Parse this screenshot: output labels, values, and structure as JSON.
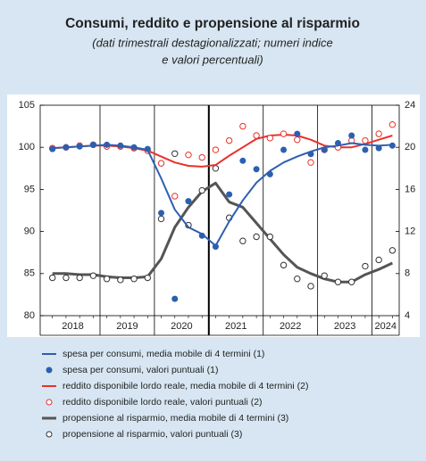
{
  "chart_data": {
    "type": "line",
    "title": "Consumi, reddito e propensione al risparmio",
    "subtitle": [
      "(dati trimestrali destagionalizzati; numeri indice",
      "e valori percentuali)"
    ],
    "x": [
      2018.125,
      2018.375,
      2018.625,
      2018.875,
      2019.125,
      2019.375,
      2019.625,
      2019.875,
      2020.125,
      2020.375,
      2020.625,
      2020.875,
      2021.125,
      2021.375,
      2021.625,
      2021.875,
      2022.125,
      2022.375,
      2022.625,
      2022.875,
      2023.125,
      2023.375,
      2023.625,
      2023.875,
      2024.125,
      2024.375
    ],
    "xlim": [
      2017.9,
      2024.5
    ],
    "xticks": [
      {
        "value": 2018.5,
        "label": "2018"
      },
      {
        "value": 2019.5,
        "label": "2019"
      },
      {
        "value": 2020.5,
        "label": "2020"
      },
      {
        "value": 2021.5,
        "label": "2021"
      },
      {
        "value": 2022.5,
        "label": "2022"
      },
      {
        "value": 2023.5,
        "label": "2023"
      },
      {
        "value": 2024.25,
        "label": "2024"
      }
    ],
    "year_lines": [
      2019,
      2020,
      2021,
      2022,
      2023,
      2024
    ],
    "thick_line": 2021,
    "ylim": [
      80,
      105
    ],
    "yticks": [
      80,
      85,
      90,
      95,
      100,
      105
    ],
    "y2lim": [
      4,
      24
    ],
    "y2ticks": [
      4,
      8,
      12,
      16,
      20,
      24
    ],
    "series": [
      {
        "name": "spesa per consumi, media mobile di 4 termini (1)",
        "color": "#2d5fb0",
        "kind": "line",
        "values": [
          99.9,
          100.0,
          100.1,
          100.2,
          100.3,
          100.2,
          100.0,
          99.7,
          96.3,
          92.6,
          90.5,
          89.7,
          88.3,
          91.2,
          93.7,
          95.8,
          97.2,
          98.2,
          98.9,
          99.5,
          100.0,
          100.2,
          100.5,
          100.3,
          100.2,
          100.3
        ]
      },
      {
        "name": "spesa per consumi, valori puntuali (1)",
        "color": "#2d5fb0",
        "kind": "dots",
        "values": [
          99.8,
          100.0,
          100.1,
          100.3,
          100.3,
          100.2,
          100.0,
          99.8,
          92.2,
          82.0,
          93.6,
          89.5,
          88.2,
          94.4,
          98.4,
          97.4,
          96.8,
          99.7,
          101.6,
          99.2,
          99.7,
          100.5,
          101.4,
          99.7,
          99.9,
          100.2
        ]
      },
      {
        "name": "reddito disponibile lordo reale, media mobile di 4 termini (2)",
        "color": "#e8322a",
        "kind": "line",
        "values": [
          99.9,
          100.0,
          100.1,
          100.2,
          100.2,
          100.1,
          99.9,
          99.6,
          98.9,
          98.2,
          97.8,
          97.7,
          97.9,
          99.0,
          100.0,
          101.0,
          101.4,
          101.5,
          101.4,
          100.9,
          100.2,
          100.0,
          100.0,
          100.4,
          100.9,
          101.4
        ]
      },
      {
        "name": "reddito disponibile lordo reale, valori puntuali (2)",
        "color": "#e8322a",
        "kind": "circles",
        "values": [
          99.9,
          100.0,
          100.2,
          100.3,
          100.1,
          100.1,
          99.9,
          99.6,
          98.1,
          94.2,
          99.1,
          98.8,
          99.7,
          100.8,
          102.5,
          101.4,
          101.1,
          101.6,
          100.9,
          98.2,
          99.7,
          100.0,
          100.8,
          100.8,
          101.6,
          102.7
        ]
      },
      {
        "name": "propensione al risparmio, media mobile di 4 termini (3)",
        "color": "#555555",
        "kind": "line",
        "axis": "y2",
        "values": [
          8.0,
          8.0,
          7.9,
          7.9,
          7.7,
          7.6,
          7.6,
          7.7,
          9.4,
          12.4,
          14.3,
          15.8,
          16.6,
          14.8,
          14.3,
          12.8,
          11.3,
          9.8,
          8.6,
          8.0,
          7.5,
          7.2,
          7.2,
          7.9,
          8.4,
          9.0
        ]
      },
      {
        "name": "propensione al risparmio, valori puntuali (3)",
        "color": "#333333",
        "kind": "circles",
        "axis": "y2",
        "values": [
          7.6,
          7.6,
          7.6,
          7.8,
          7.5,
          7.4,
          7.5,
          7.6,
          13.2,
          19.4,
          12.6,
          15.9,
          18.0,
          13.3,
          11.1,
          11.5,
          11.5,
          8.8,
          7.5,
          6.8,
          7.8,
          7.2,
          7.2,
          8.7,
          9.3,
          10.2
        ]
      }
    ]
  }
}
